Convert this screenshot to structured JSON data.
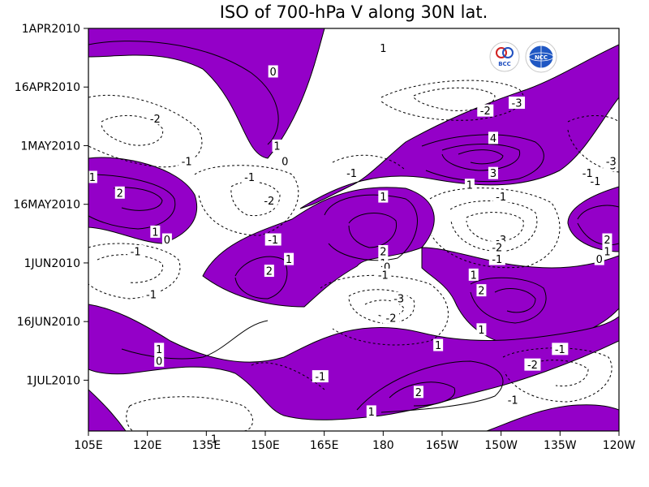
{
  "chart_data": {
    "type": "contour",
    "title": "ISO of 700-hPa V along 30N lat.",
    "x_ticks": [
      "105E",
      "120E",
      "135E",
      "150E",
      "165E",
      "180",
      "165W",
      "150W",
      "135W",
      "120W"
    ],
    "y_ticks": [
      "1APR2010",
      "16APR2010",
      "1MAY2010",
      "16MAY2010",
      "1JUN2010",
      "16JUN2010",
      "1JUL2010"
    ],
    "fill_color": "#9400c8",
    "shading": "values >= 0 shaded",
    "contour_labels": [
      {
        "text": "1",
        "lon": 180,
        "date": "2010-04-06"
      },
      {
        "text": "0",
        "lon": 152,
        "date": "2010-04-12"
      },
      {
        "text": "-2",
        "lon": 122,
        "date": "2010-04-24"
      },
      {
        "text": "-3",
        "lon": 214,
        "date": "2010-04-20"
      },
      {
        "text": "-2",
        "lon": 206,
        "date": "2010-04-22"
      },
      {
        "text": "1",
        "lon": 153,
        "date": "2010-05-01"
      },
      {
        "text": "0",
        "lon": 155,
        "date": "2010-05-05"
      },
      {
        "text": "4",
        "lon": 208,
        "date": "2010-04-29"
      },
      {
        "text": "-1",
        "lon": 130,
        "date": "2010-05-05"
      },
      {
        "text": "-1",
        "lon": 172,
        "date": "2010-05-08"
      },
      {
        "text": "3",
        "lon": 208,
        "date": "2010-05-08"
      },
      {
        "text": "1",
        "lon": 202,
        "date": "2010-05-11"
      },
      {
        "text": "-1",
        "lon": 146,
        "date": "2010-05-09"
      },
      {
        "text": "-3",
        "lon": 238,
        "date": "2010-05-06"
      },
      {
        "text": "-1",
        "lon": 234,
        "date": "2010-05-10"
      },
      {
        "text": "1",
        "lon": 106,
        "date": "2010-05-09"
      },
      {
        "text": "2",
        "lon": 113,
        "date": "2010-05-13"
      },
      {
        "text": "-2",
        "lon": 151,
        "date": "2010-05-15"
      },
      {
        "text": "1",
        "lon": 180,
        "date": "2010-05-14"
      },
      {
        "text": "-1",
        "lon": 210,
        "date": "2010-05-14"
      },
      {
        "text": "1",
        "lon": 122,
        "date": "2010-05-23"
      },
      {
        "text": "0",
        "lon": 125,
        "date": "2010-05-25"
      },
      {
        "text": "-1",
        "lon": 152,
        "date": "2010-05-25"
      },
      {
        "text": "-3",
        "lon": 210,
        "date": "2010-05-25"
      },
      {
        "text": "-2",
        "lon": 209,
        "date": "2010-05-27"
      },
      {
        "text": "-1",
        "lon": 117,
        "date": "2010-05-28"
      },
      {
        "text": "2",
        "lon": 180,
        "date": "2010-05-28"
      },
      {
        "text": "1",
        "lon": 180,
        "date": "2010-05-31"
      },
      {
        "text": "0",
        "lon": 181,
        "date": "2010-06-01"
      },
      {
        "text": "-1",
        "lon": 209,
        "date": "2010-05-30"
      },
      {
        "text": "2",
        "lon": 237,
        "date": "2010-05-25"
      },
      {
        "text": "1",
        "lon": 237,
        "date": "2010-05-28"
      },
      {
        "text": "0",
        "lon": 235,
        "date": "2010-05-30"
      },
      {
        "text": "1",
        "lon": 156,
        "date": "2010-05-30"
      },
      {
        "text": "2",
        "lon": 151,
        "date": "2010-06-02"
      },
      {
        "text": "-1",
        "lon": 180,
        "date": "2010-06-03"
      },
      {
        "text": "1",
        "lon": 203,
        "date": "2010-06-03"
      },
      {
        "text": "2",
        "lon": 205,
        "date": "2010-06-07"
      },
      {
        "text": "-1",
        "lon": 121,
        "date": "2010-06-08"
      },
      {
        "text": "-3",
        "lon": 184,
        "date": "2010-06-09"
      },
      {
        "text": "-2",
        "lon": 182,
        "date": "2010-06-14"
      },
      {
        "text": "1",
        "lon": 205,
        "date": "2010-06-17"
      },
      {
        "text": "1",
        "lon": 123,
        "date": "2010-06-22"
      },
      {
        "text": "0",
        "lon": 123,
        "date": "2010-06-25"
      },
      {
        "text": "1",
        "lon": 194,
        "date": "2010-06-21"
      },
      {
        "text": "-1",
        "lon": 225,
        "date": "2010-06-22"
      },
      {
        "text": "-2",
        "lon": 218,
        "date": "2010-06-26"
      },
      {
        "text": "-1",
        "lon": 164,
        "date": "2010-06-29"
      },
      {
        "text": "2",
        "lon": 189,
        "date": "2010-07-03"
      },
      {
        "text": "-1",
        "lon": 213,
        "date": "2010-07-05"
      },
      {
        "text": "1",
        "lon": 177,
        "date": "2010-07-08"
      },
      {
        "text": "1",
        "lon": 137,
        "date": "2010-07-15"
      },
      {
        "text": "-3",
        "lon": 238,
        "date": "2010-05-05"
      },
      {
        "text": "-1",
        "lon": 232,
        "date": "2010-05-08"
      }
    ],
    "logos": [
      "BCC",
      "NCC"
    ]
  }
}
